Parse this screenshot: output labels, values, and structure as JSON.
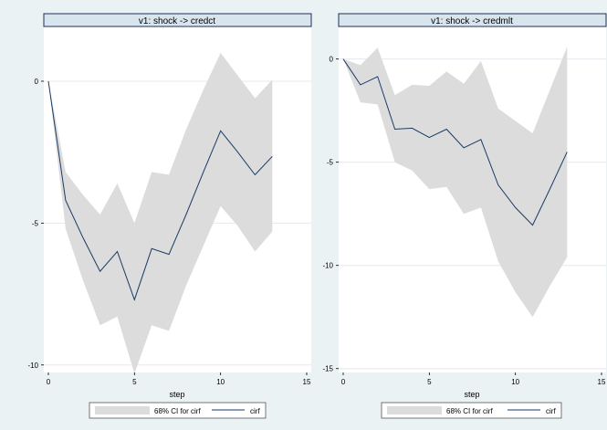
{
  "chart_data": [
    {
      "type": "area",
      "title": "v1: shock -> credct",
      "xlabel": "step",
      "ylabel": "",
      "xlim": [
        0,
        15
      ],
      "ylim": [
        -10.2,
        1.8
      ],
      "xticks": [
        0,
        5,
        10,
        15
      ],
      "yticks": [
        0,
        -5,
        -10
      ],
      "grid": true,
      "legend_position": "bottom",
      "x": [
        0,
        1,
        2,
        3,
        4,
        5,
        6,
        7,
        8,
        9,
        10,
        11,
        12,
        13
      ],
      "series": [
        {
          "name": "68% CI for cirf",
          "kind": "band",
          "color": "#dcdcdc",
          "lower": [
            0,
            -5.2,
            -7.0,
            -8.6,
            -8.3,
            -10.3,
            -8.6,
            -8.8,
            -7.2,
            -5.8,
            -4.4,
            -5.1,
            -6.0,
            -5.3
          ],
          "upper": [
            0,
            -3.2,
            -4.0,
            -4.7,
            -3.6,
            -5.0,
            -3.2,
            -3.3,
            -1.7,
            -0.3,
            1.0,
            0.2,
            -0.6,
            0.05
          ]
        },
        {
          "name": "cirf",
          "kind": "line",
          "color": "#1a3b66",
          "values": [
            0,
            -4.2,
            -5.5,
            -6.7,
            -6.0,
            -7.7,
            -5.9,
            -6.1,
            -4.7,
            -3.2,
            -1.75,
            -2.5,
            -3.3,
            -2.65
          ]
        }
      ]
    },
    {
      "type": "area",
      "title": "v1: shock -> credmlt",
      "xlabel": "step",
      "ylabel": "",
      "xlim": [
        0,
        15
      ],
      "ylim": [
        -15.1,
        1.4
      ],
      "xticks": [
        0,
        5,
        10,
        15
      ],
      "yticks": [
        0,
        -5,
        -10,
        -15
      ],
      "grid": true,
      "legend_position": "bottom",
      "x": [
        0,
        1,
        2,
        3,
        4,
        5,
        6,
        7,
        8,
        9,
        10,
        11,
        12,
        13
      ],
      "series": [
        {
          "name": "68% CI for cirf",
          "kind": "band",
          "color": "#dcdcdc",
          "lower": [
            0,
            -2.1,
            -2.2,
            -5.0,
            -5.4,
            -6.3,
            -6.2,
            -7.5,
            -7.2,
            -9.8,
            -11.3,
            -12.5,
            -11.0,
            -9.6
          ],
          "upper": [
            0,
            -0.3,
            0.55,
            -1.75,
            -1.25,
            -1.3,
            -0.6,
            -1.2,
            -0.1,
            -2.4,
            -3.0,
            -3.6,
            -1.5,
            0.6
          ]
        },
        {
          "name": "cirf",
          "kind": "line",
          "color": "#1a3b66",
          "values": [
            0,
            -1.25,
            -0.85,
            -3.4,
            -3.35,
            -3.8,
            -3.4,
            -4.3,
            -3.9,
            -6.1,
            -7.2,
            -8.05,
            -6.3,
            -4.5
          ]
        }
      ]
    }
  ]
}
